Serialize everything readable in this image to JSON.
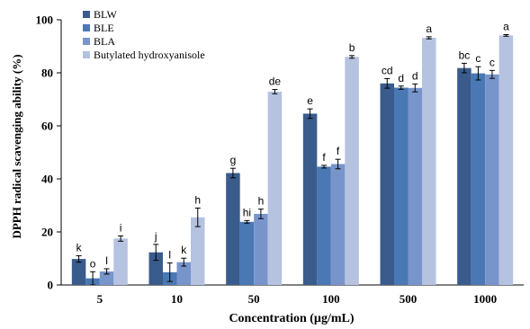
{
  "chart_data": {
    "type": "bar",
    "title": "",
    "xlabel": "Concentration (µg/mL)",
    "ylabel": "DPPH radical scavenging ability (%)",
    "ylim": [
      0,
      100
    ],
    "yticks": [
      0,
      20,
      40,
      60,
      80,
      100
    ],
    "categories": [
      "5",
      "10",
      "50",
      "100",
      "500",
      "1000"
    ],
    "legend_position": "top-left",
    "grid": false,
    "series": [
      {
        "name": "BLW",
        "color": "#3a5c8c",
        "values": [
          9.8,
          12.3,
          42.2,
          64.6,
          76.0,
          81.8
        ],
        "errors": [
          1.2,
          3.0,
          1.8,
          1.8,
          1.8,
          1.8
        ],
        "labels": [
          "k",
          "j",
          "g",
          "e",
          "cd",
          "bc"
        ]
      },
      {
        "name": "BLE",
        "color": "#4a78b4",
        "values": [
          2.5,
          4.8,
          23.8,
          44.6,
          74.4,
          79.8
        ],
        "errors": [
          2.5,
          3.5,
          0.5,
          0.5,
          0.6,
          2.5
        ],
        "labels": [
          "o",
          "l",
          "hi",
          "f",
          "d",
          "c"
        ]
      },
      {
        "name": "BLA",
        "color": "#7895cb",
        "values": [
          5.1,
          8.6,
          26.8,
          45.6,
          74.3,
          79.4
        ],
        "errors": [
          1.0,
          1.5,
          1.8,
          1.8,
          1.5,
          1.5
        ],
        "labels": [
          "l",
          "k",
          "h",
          "f",
          "d",
          "c"
        ]
      },
      {
        "name": "Butylated hydroxyanisole",
        "color": "#b5c2e0",
        "values": [
          17.5,
          25.5,
          72.9,
          86.0,
          93.2,
          94.1
        ],
        "errors": [
          1.0,
          3.5,
          0.8,
          0.5,
          0.4,
          0.3
        ],
        "labels": [
          "i",
          "h",
          "de",
          "b",
          "a",
          "a"
        ]
      }
    ]
  }
}
